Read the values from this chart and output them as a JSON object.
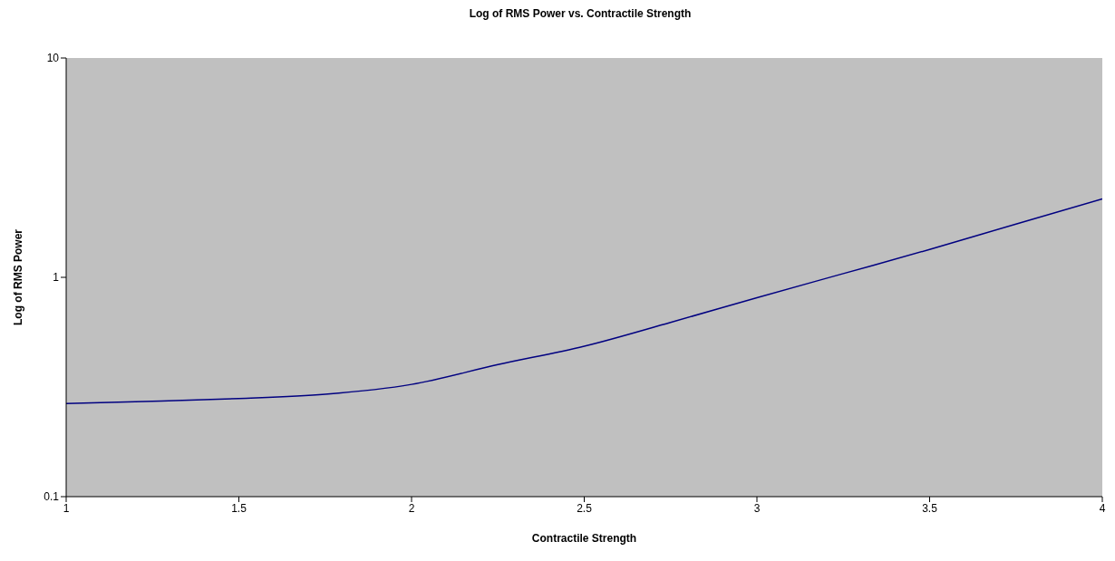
{
  "chart_data": {
    "type": "line",
    "title": "Log of RMS Power vs. Contractile Strength",
    "xlabel": "Contractile Strength",
    "ylabel": "Log of RMS Power",
    "x": [
      1,
      1.25,
      1.5,
      1.75,
      2,
      2.25,
      2.5,
      2.75,
      3,
      3.25,
      3.5,
      3.75,
      4
    ],
    "series": [
      {
        "color": "#000080",
        "values": [
          0.266,
          0.272,
          0.28,
          0.293,
          0.325,
          0.4,
          0.485,
          0.623,
          0.807,
          1.04,
          1.34,
          1.75,
          2.28
        ]
      }
    ],
    "xlim": [
      1,
      4
    ],
    "xticks": [
      1,
      1.5,
      2,
      2.5,
      3,
      3.5,
      4
    ],
    "ylim": [
      0.1,
      10
    ],
    "yticks": [
      0.1,
      1,
      10
    ],
    "log": "y",
    "grid": false,
    "legend": false,
    "marker": "none",
    "line_style": "solid"
  }
}
